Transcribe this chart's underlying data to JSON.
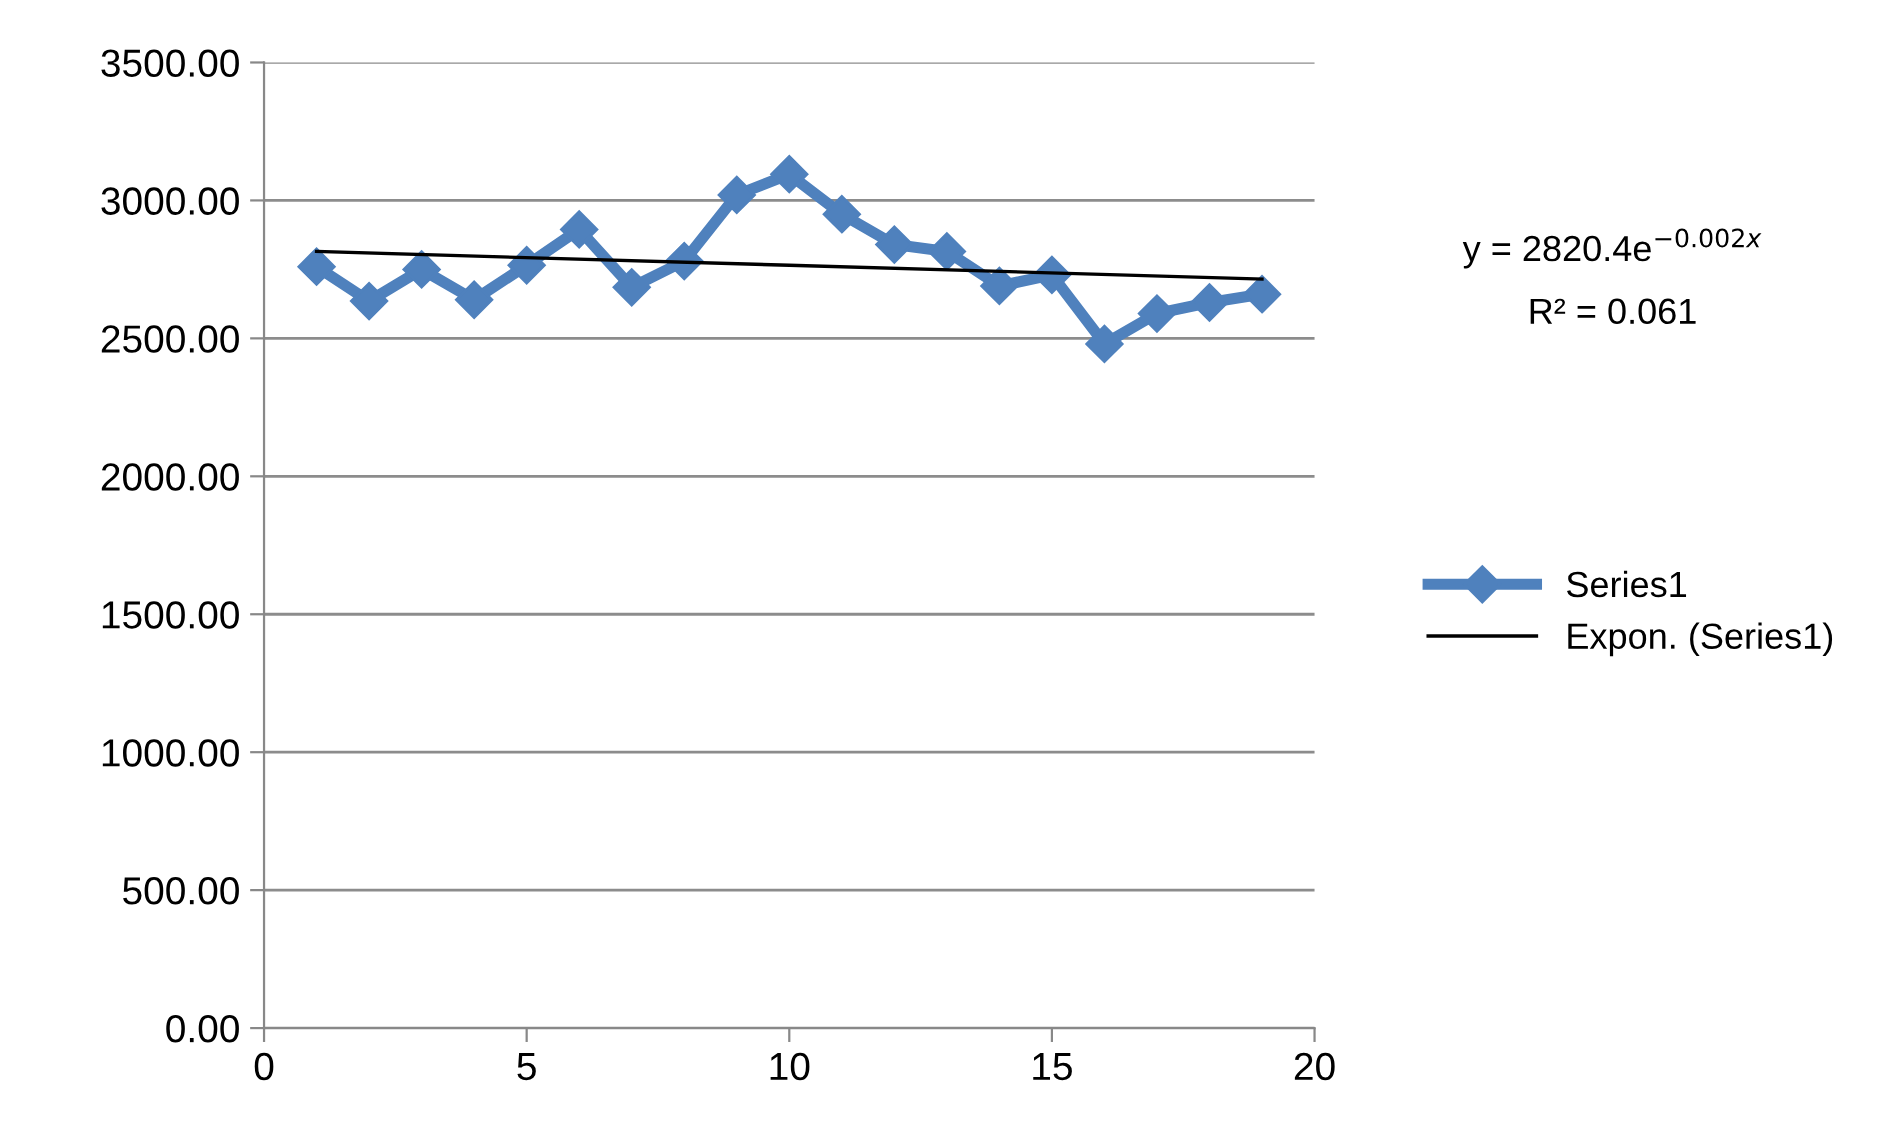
{
  "chart_data": {
    "type": "line",
    "xlim": [
      0,
      20
    ],
    "xticks": [
      0,
      5,
      10,
      15,
      20
    ],
    "ylim": [
      0,
      3500
    ],
    "yticks": [
      {
        "value": 0,
        "label": "0.00"
      },
      {
        "value": 500,
        "label": "500.00"
      },
      {
        "value": 1000,
        "label": "1000.00"
      },
      {
        "value": 1500,
        "label": "1500.00"
      },
      {
        "value": 2000,
        "label": "2000.00"
      },
      {
        "value": 2500,
        "label": "2500.00"
      },
      {
        "value": 3000,
        "label": "3000.00"
      },
      {
        "value": 3500,
        "label": "3500.00"
      }
    ],
    "grid": "y",
    "legend": "right",
    "annotations": [
      "y = 2820.4e$^{−0.002x}$",
      "R² = 0.061"
    ],
    "series": [
      {
        "name": "Series1",
        "color": "#4f81bd",
        "marker": "diamond",
        "x": [
          1,
          2,
          3,
          4,
          5,
          6,
          7,
          8,
          9,
          10,
          11,
          12,
          13,
          14,
          15,
          16,
          17,
          18,
          19
        ],
        "values": [
          2760,
          2635,
          2750,
          2640,
          2765,
          2895,
          2685,
          2780,
          3020,
          3095,
          2950,
          2840,
          2815,
          2690,
          2730,
          2480,
          2590,
          2630,
          2660
        ]
      },
      {
        "name": "Expon. (Series1)",
        "color": "#000000",
        "marker": "none",
        "x": [
          1,
          10,
          19
        ],
        "values": [
          2815,
          2765,
          2715
        ]
      }
    ]
  }
}
